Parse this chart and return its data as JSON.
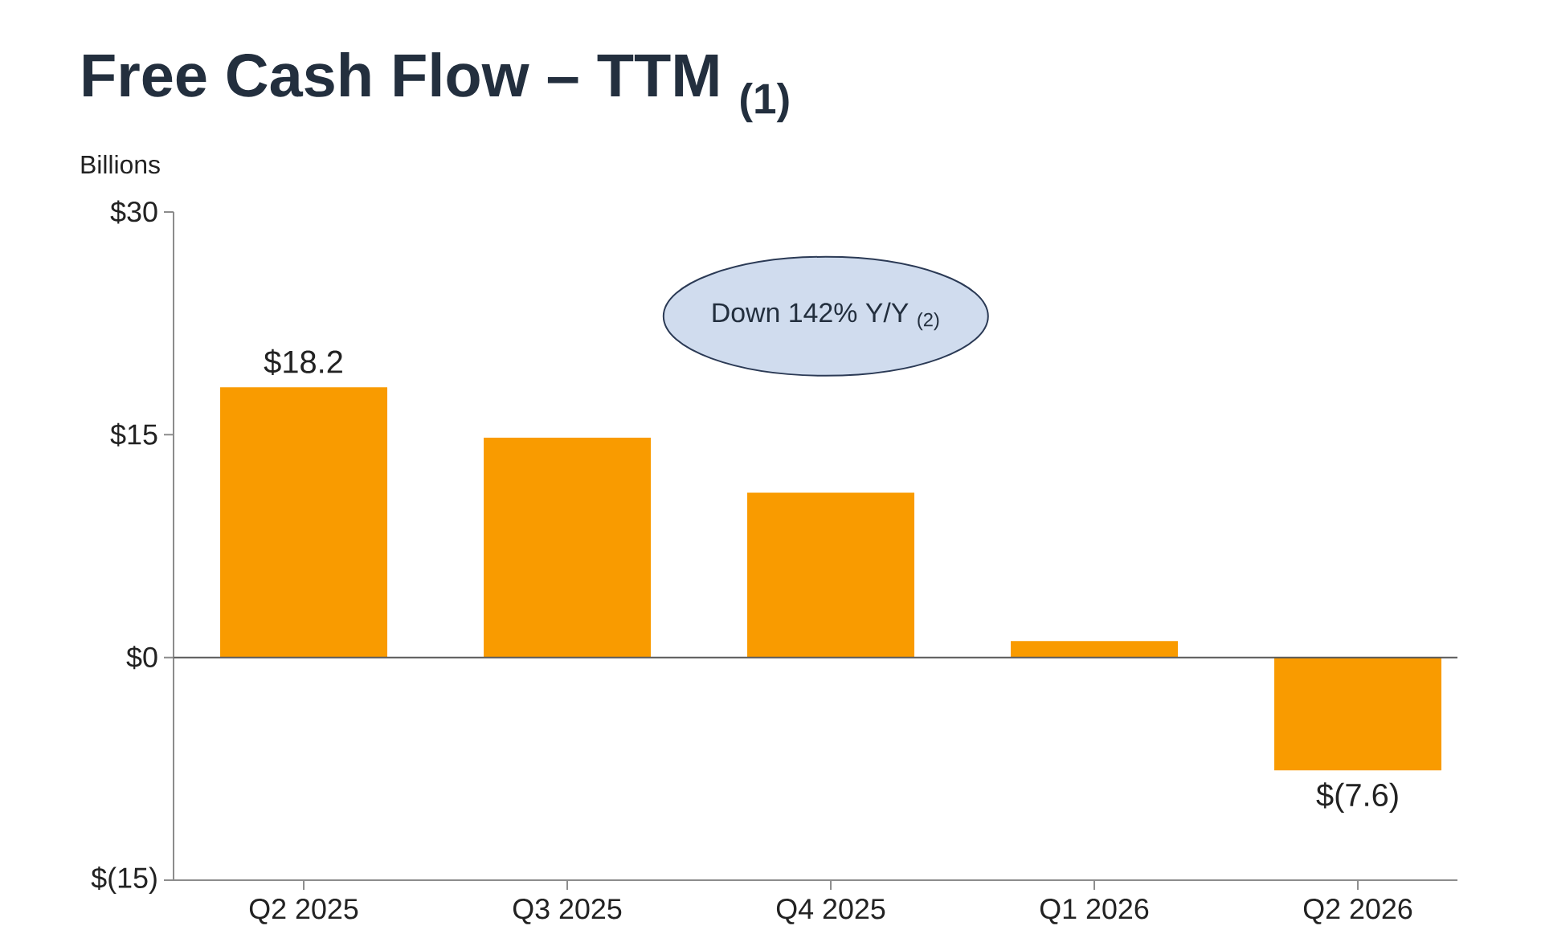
{
  "chart_data": {
    "type": "bar",
    "title": "Free Cash Flow – TTM $_{(1)}$",
    "ylabel": "Billions",
    "categories": [
      "Q2 2025",
      "Q3 2025",
      "Q4 2025",
      "Q1 2026",
      "Q2 2026"
    ],
    "values": [
      18.2,
      14.8,
      11.1,
      1.1,
      -7.6
    ],
    "color": "#f99b00",
    "ylim": [
      -15,
      30
    ],
    "yticks": [
      {
        "value": -15,
        "label": "$(15)"
      },
      {
        "value": 0,
        "label": "$0"
      },
      {
        "value": 15,
        "label": "$15"
      },
      {
        "value": 30,
        "label": "$30"
      }
    ],
    "value_labels": [
      "$18.2",
      null,
      null,
      null,
      "$(7.6)"
    ],
    "ref_lines": [
      {
        "axis": "y",
        "value": 0,
        "color": "#595959"
      }
    ],
    "annotations": [
      "Down 142% Y/Y $_{(2)}$"
    ]
  }
}
